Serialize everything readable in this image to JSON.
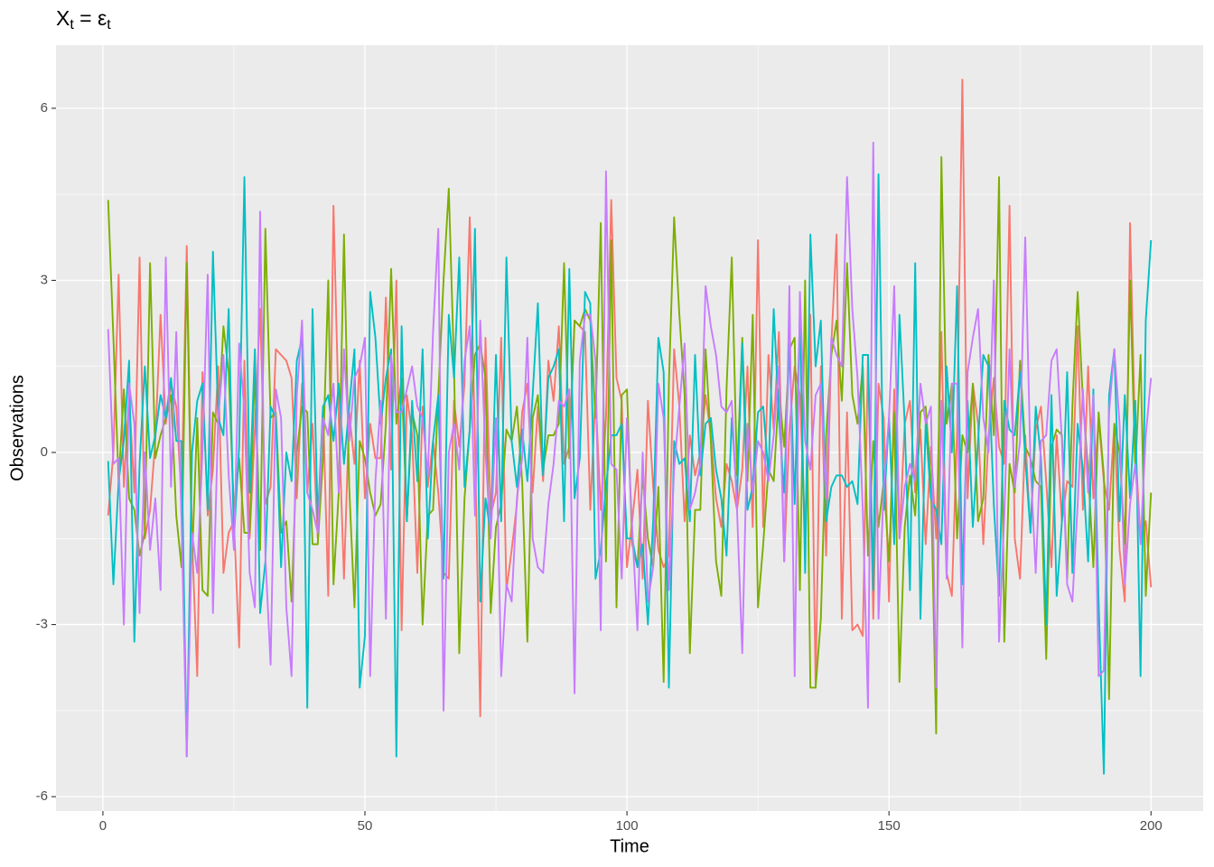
{
  "chart_data": {
    "type": "line",
    "title": [
      {
        "text": "X"
      },
      {
        "text": "t",
        "sub": true
      },
      {
        "text": " = ε"
      },
      {
        "text": "t",
        "sub": true
      }
    ],
    "x_label": "Time",
    "y_label": "Observations",
    "xlim": [
      -8.95,
      209.95
    ],
    "ylim": [
      -6.25,
      7.1
    ],
    "xticks": [
      0,
      50,
      100,
      150,
      200
    ],
    "yticks": [
      -6,
      -3,
      0,
      3,
      6
    ],
    "x_minor_grid": [
      25,
      75,
      125,
      175
    ],
    "y_minor_grid": [
      -4.5,
      -1.5,
      1.5,
      4.5
    ],
    "grid": true,
    "x": [
      1,
      2,
      3,
      4,
      5,
      6,
      7,
      8,
      9,
      10,
      11,
      12,
      13,
      14,
      15,
      16,
      17,
      18,
      19,
      20,
      21,
      22,
      23,
      24,
      25,
      26,
      27,
      28,
      29,
      30,
      31,
      32,
      33,
      34,
      35,
      36,
      37,
      38,
      39,
      40,
      41,
      42,
      43,
      44,
      45,
      46,
      47,
      48,
      49,
      50,
      51,
      52,
      53,
      54,
      55,
      56,
      57,
      58,
      59,
      60,
      61,
      62,
      63,
      64,
      65,
      66,
      67,
      68,
      69,
      70,
      71,
      72,
      73,
      74,
      75,
      76,
      77,
      78,
      79,
      80,
      81,
      82,
      83,
      84,
      85,
      86,
      87,
      88,
      89,
      90,
      91,
      92,
      93,
      94,
      95,
      96,
      97,
      98,
      99,
      100,
      101,
      102,
      103,
      104,
      105,
      106,
      107,
      108,
      109,
      110,
      111,
      112,
      113,
      114,
      115,
      116,
      117,
      118,
      119,
      120,
      121,
      122,
      123,
      124,
      125,
      126,
      127,
      128,
      129,
      130,
      131,
      132,
      133,
      134,
      135,
      136,
      137,
      138,
      139,
      140,
      141,
      142,
      143,
      144,
      145,
      146,
      147,
      148,
      149,
      150,
      151,
      152,
      153,
      154,
      155,
      156,
      157,
      158,
      159,
      160,
      161,
      162,
      163,
      164,
      165,
      166,
      167,
      168,
      169,
      170,
      171,
      172,
      173,
      174,
      175,
      176,
      177,
      178,
      179,
      180,
      181,
      182,
      183,
      184,
      185,
      186,
      187,
      188,
      189,
      190,
      191,
      192,
      193,
      194,
      195,
      196,
      197,
      198,
      199,
      200
    ],
    "series": [
      {
        "color": "#F8766D",
        "values": [
          -1.1,
          0.0,
          3.1,
          -0.6,
          1.0,
          -0.7,
          3.4,
          -1.5,
          -1.0,
          0.2,
          2.4,
          0.5,
          1.2,
          0.8,
          -0.8,
          3.6,
          -1.5,
          -3.9,
          1.4,
          -1.1,
          -0.3,
          1.5,
          -2.1,
          -1.4,
          -1.2,
          -3.4,
          1.6,
          -1.5,
          0.4,
          2.5,
          -0.9,
          -0.6,
          1.8,
          1.7,
          1.6,
          1.3,
          -0.8,
          1.2,
          -0.7,
          0.5,
          -1.5,
          0.8,
          -2.5,
          4.3,
          0.6,
          -2.2,
          0.7,
          -0.2,
          1.6,
          -0.8,
          0.5,
          -0.1,
          -0.1,
          2.7,
          -0.3,
          3.0,
          -3.1,
          1.0,
          0.3,
          -2.1,
          0.8,
          -0.6,
          0.2,
          -0.7,
          -2.1,
          -2.2,
          0.9,
          0.1,
          1.2,
          4.1,
          0.2,
          -4.6,
          2.0,
          -1.1,
          -0.7,
          2.0,
          -2.4,
          -1.7,
          -0.9,
          0.7,
          1.2,
          -0.7,
          0.8,
          -0.5,
          1.6,
          0.9,
          2.2,
          -0.2,
          0.1,
          2.3,
          2.2,
          2.1,
          -1.0,
          1.0,
          -1.0,
          0.6,
          4.4,
          1.3,
          0.9,
          -2.0,
          -1.2,
          -0.3,
          -2.2,
          0.9,
          -0.6,
          -1.7,
          -2.0,
          -1.8,
          1.8,
          0.8,
          -1.2,
          0.3,
          -0.4,
          0.0,
          1.0,
          0.3,
          -0.8,
          -1.3,
          -0.2,
          -0.5,
          -1.0,
          -0.3,
          1.5,
          -1.3,
          3.7,
          -1.3,
          1.7,
          0.4,
          2.1,
          -1.9,
          0.4,
          1.5,
          1.0,
          -1.4,
          2.4,
          -4.1,
          1.5,
          -1.8,
          1.9,
          3.8,
          -2.9,
          0.7,
          -3.1,
          -3.0,
          -3.2,
          1.7,
          -2.9,
          1.2,
          0.6,
          -2.6,
          1.1,
          -1.5,
          0.5,
          0.9,
          -0.7,
          0.4,
          -1.6,
          0.1,
          -1.5,
          2.1,
          -2.1,
          -2.5,
          0.4,
          6.5,
          -0.8,
          1.2,
          0.5,
          -1.6,
          0.3,
          1.3,
          0.1,
          -0.2,
          4.3,
          -1.5,
          -2.2,
          0.3,
          -1.4,
          0.4,
          0.8,
          -0.5,
          -2.0,
          0.3,
          -1.2,
          -0.5,
          -0.6,
          2.2,
          -1.0,
          1.5,
          -0.8,
          0.6,
          -0.5,
          -1.0,
          0.5,
          -1.7,
          -2.6,
          4.0,
          0.1,
          -1.5,
          -1.2,
          -2.35
        ]
      },
      {
        "color": "#7CAE00",
        "values": [
          4.4,
          2.0,
          -0.5,
          1.1,
          -0.8,
          -1.0,
          -1.8,
          -1.4,
          3.3,
          -0.1,
          0.3,
          0.6,
          1.0,
          -1.1,
          -2.0,
          3.3,
          -1.9,
          0.6,
          -2.4,
          -2.5,
          0.7,
          0.5,
          2.2,
          1.4,
          -1.0,
          -0.1,
          -1.4,
          -1.4,
          1.5,
          -1.7,
          3.9,
          0.6,
          0.7,
          -1.4,
          -1.2,
          -2.6,
          0.0,
          0.8,
          0.7,
          -1.6,
          -1.6,
          -0.1,
          3.0,
          -2.3,
          -0.7,
          3.8,
          -0.6,
          -2.7,
          0.2,
          -0.1,
          -0.7,
          -1.1,
          -0.9,
          0.5,
          3.2,
          0.5,
          1.3,
          -1.2,
          0.7,
          0.3,
          -3.0,
          -1.1,
          -1.0,
          1.0,
          3.0,
          4.6,
          1.5,
          -3.5,
          -0.8,
          0.4,
          1.7,
          1.9,
          1.3,
          -2.8,
          -1.3,
          -0.9,
          0.4,
          0.2,
          0.8,
          -0.5,
          -3.3,
          0.6,
          1.0,
          -0.3,
          0.3,
          0.3,
          0.5,
          3.3,
          -0.1,
          2.3,
          2.2,
          2.5,
          2.3,
          0.6,
          4.0,
          -1.9,
          3.7,
          -2.7,
          1.0,
          1.1,
          -1.6,
          -2.0,
          -0.4,
          -1.5,
          -2.0,
          -0.6,
          -4.0,
          1.2,
          4.1,
          2.4,
          1.0,
          -3.5,
          -1.0,
          -1.0,
          1.8,
          0.2,
          -1.9,
          -2.5,
          1.1,
          3.4,
          -0.4,
          2.0,
          -0.5,
          2.4,
          -2.7,
          -1.6,
          -0.3,
          -0.5,
          1.1,
          0.1,
          1.8,
          2.0,
          -2.4,
          3.0,
          -4.1,
          -4.1,
          -2.9,
          0.3,
          1.7,
          2.3,
          0.9,
          3.3,
          1.0,
          0.5,
          1.5,
          -1.8,
          0.2,
          -1.3,
          -0.5,
          -1.9,
          0.7,
          -4.0,
          -1.3,
          -0.4,
          -1.1,
          0.7,
          0.8,
          -0.5,
          -4.9,
          5.15,
          0.5,
          1.2,
          -1.5,
          0.3,
          0.0,
          1.2,
          -1.2,
          -0.8,
          1.7,
          0.3,
          4.8,
          -3.3,
          -0.2,
          -0.7,
          1.6,
          0.1,
          -0.1,
          -0.5,
          -0.6,
          -3.6,
          0.1,
          0.4,
          0.3,
          -2.2,
          0.8,
          2.8,
          0.9,
          -0.3,
          -2.0,
          0.7,
          -0.4,
          -4.3,
          0.5,
          0.0,
          -1.6,
          3.0,
          -0.3,
          1.7,
          -2.5,
          -0.7
        ]
      },
      {
        "color": "#00BFC4",
        "values": [
          -0.15,
          -2.3,
          -0.5,
          0.2,
          1.6,
          -3.3,
          -0.2,
          1.5,
          -0.1,
          0.3,
          1.0,
          0.6,
          1.3,
          0.2,
          0.2,
          -5.3,
          0.0,
          0.9,
          1.2,
          -1.0,
          3.5,
          0.6,
          0.3,
          2.5,
          -1.5,
          0.1,
          4.8,
          -0.7,
          1.8,
          -2.8,
          -1.9,
          0.8,
          0.6,
          -2.0,
          0.0,
          -0.5,
          1.6,
          2.0,
          -4.45,
          2.5,
          -1.2,
          0.8,
          1.0,
          0.2,
          1.2,
          -0.2,
          0.8,
          1.8,
          -4.1,
          -3.2,
          2.8,
          2.0,
          0.5,
          1.3,
          1.8,
          -5.3,
          2.2,
          -1.2,
          0.9,
          -0.5,
          1.8,
          -1.5,
          0.2,
          1.0,
          -2.2,
          2.4,
          1.3,
          3.4,
          -0.6,
          0.4,
          3.9,
          -2.6,
          -0.8,
          -1.4,
          1.7,
          -1.2,
          3.4,
          0.2,
          -0.6,
          0.4,
          -0.5,
          1.0,
          2.6,
          -0.4,
          1.3,
          1.5,
          1.8,
          -1.2,
          3.2,
          -0.8,
          -0.1,
          2.8,
          2.6,
          -2.2,
          -1.7,
          -0.6,
          0.3,
          0.3,
          0.5,
          -1.5,
          -1.5,
          -2.0,
          -1.6,
          -3.0,
          -1.2,
          2.0,
          1.4,
          -4.1,
          0.2,
          -0.2,
          -0.1,
          -1.2,
          1.7,
          -0.4,
          0.5,
          0.6,
          -0.3,
          -0.8,
          -1.8,
          0.6,
          -0.8,
          1.9,
          -1.0,
          -0.6,
          0.7,
          0.8,
          -0.4,
          2.5,
          0.6,
          -0.7,
          1.9,
          -0.9,
          2.4,
          -2.1,
          3.8,
          1.5,
          2.3,
          -1.2,
          -0.6,
          -0.4,
          -0.4,
          -0.6,
          -0.5,
          -0.9,
          1.7,
          1.7,
          -2.4,
          4.85,
          -1.0,
          0.6,
          -1.6,
          2.4,
          0.5,
          -2.4,
          3.3,
          -2.9,
          0.5,
          -0.8,
          -1.0,
          -1.6,
          1.5,
          0.0,
          2.9,
          -2.3,
          0.9,
          -1.3,
          0.2,
          1.7,
          1.5,
          -0.9,
          -2.5,
          0.9,
          0.4,
          0.3,
          1.4,
          -0.1,
          -1.4,
          0.8,
          -0.1,
          -3.0,
          1.0,
          -2.5,
          -1.2,
          1.4,
          -2.1,
          0.5,
          -0.3,
          -1.9,
          1.1,
          -2.6,
          -5.6,
          1.0,
          1.8,
          -1.2,
          1.0,
          -0.8,
          0.9,
          -3.9,
          2.3,
          3.7
        ]
      },
      {
        "color": "#C77CFF",
        "values": [
          2.15,
          -0.2,
          -0.1,
          -3.0,
          1.2,
          0.5,
          -2.8,
          0.0,
          -1.7,
          -0.8,
          -2.4,
          3.4,
          -0.6,
          2.1,
          -1.2,
          -5.3,
          -1.4,
          -2.1,
          0.0,
          3.1,
          -2.8,
          0.6,
          1.7,
          -0.4,
          -1.7,
          1.9,
          0.7,
          -2.1,
          -2.7,
          4.2,
          -1.8,
          -3.7,
          1.1,
          0.6,
          -2.7,
          -3.9,
          1.0,
          2.3,
          -0.7,
          -1.0,
          -1.4,
          0.6,
          0.3,
          1.2,
          -0.7,
          1.8,
          0.2,
          1.3,
          1.5,
          2.0,
          -3.9,
          -0.5,
          0.9,
          -2.9,
          1.7,
          0.7,
          0.7,
          1.1,
          1.5,
          0.8,
          0.6,
          -0.4,
          2.1,
          3.9,
          -4.5,
          0.0,
          0.5,
          -0.3,
          1.6,
          2.2,
          -1.1,
          2.3,
          0.0,
          -1.5,
          0.6,
          -3.9,
          -2.3,
          -2.6,
          -0.8,
          -0.1,
          2.0,
          -1.5,
          -2.0,
          -2.1,
          -0.9,
          -0.2,
          0.9,
          0.8,
          1.1,
          -4.2,
          1.6,
          2.4,
          2.4,
          1.6,
          -3.1,
          4.9,
          -0.2,
          -0.3,
          -2.2,
          0.6,
          -1.3,
          -3.1,
          0.0,
          -2.6,
          -2.0,
          1.2,
          0.6,
          -2.4,
          -0.3,
          0.8,
          1.9,
          -1.0,
          -0.7,
          -0.2,
          2.9,
          2.2,
          1.7,
          0.8,
          0.7,
          0.9,
          -1.0,
          -3.5,
          0.5,
          -0.7,
          0.2,
          0.0,
          -0.5,
          0.3,
          1.5,
          -1.9,
          2.9,
          -3.9,
          2.8,
          0.2,
          -0.3,
          1.0,
          1.2,
          -0.8,
          2.0,
          1.7,
          1.5,
          4.8,
          2.5,
          1.3,
          -1.0,
          -4.45,
          5.4,
          -2.9,
          -0.6,
          0.6,
          2.9,
          -1.5,
          -0.6,
          -0.2,
          -0.5,
          1.2,
          0.5,
          0.8,
          -4.1,
          0.9,
          -2.2,
          1.2,
          1.2,
          -3.4,
          1.4,
          2.0,
          2.5,
          0.6,
          0.0,
          3.0,
          -3.3,
          -1.1,
          1.8,
          -0.6,
          0.2,
          3.75,
          -0.2,
          -2.1,
          0.2,
          0.3,
          1.6,
          1.8,
          0.2,
          -2.3,
          -2.6,
          -0.9,
          1.1,
          -0.7,
          1.0,
          -3.9,
          -3.8,
          0.7,
          1.8,
          0.5,
          -2.3,
          -0.9,
          -0.2,
          -1.6,
          0.3,
          1.3
        ]
      }
    ]
  }
}
